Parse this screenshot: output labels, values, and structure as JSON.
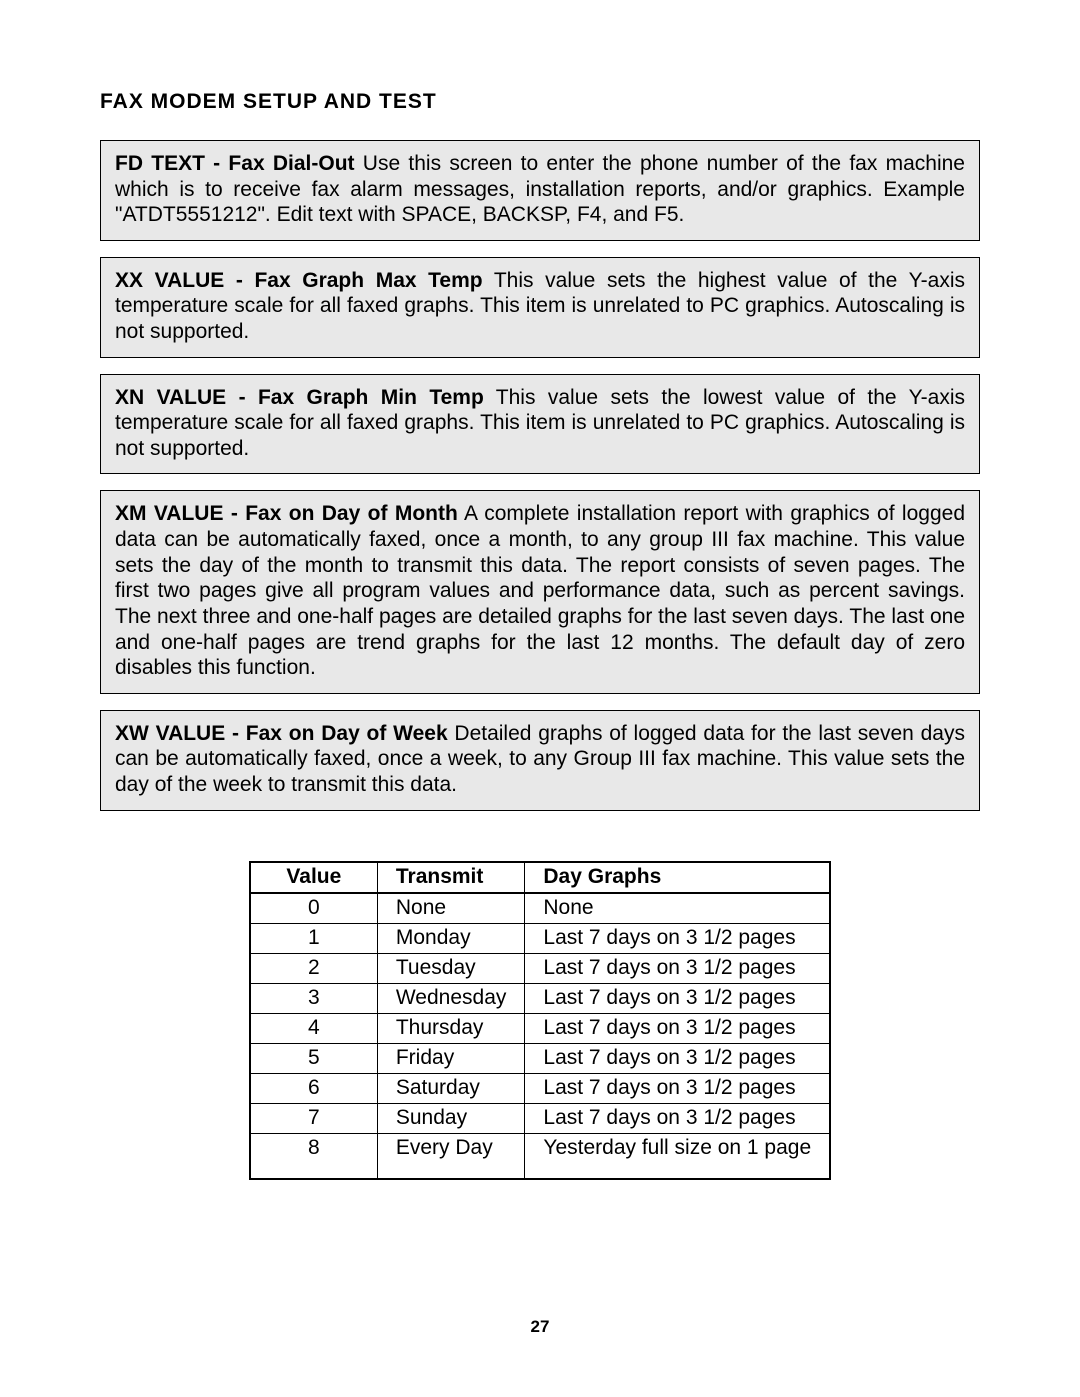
{
  "page": {
    "section_title": "FAX MODEM SETUP AND TEST",
    "page_number": "27"
  },
  "boxes": [
    {
      "lead": "FD TEXT - Fax Dial-Out",
      "body": " Use this screen to enter the phone number of the fax machine which is to receive fax alarm messages, installation reports, and/or graphics. Example \"ATDT5551212\". Edit text with SPACE, BACKSP, F4, and F5."
    },
    {
      "lead": "XX VALUE - Fax Graph Max Temp",
      "body": " This value sets the highest value of the Y-axis temperature scale for all faxed graphs. This item is unrelated to PC graphics.  Autoscaling is not supported."
    },
    {
      "lead": "XN VALUE - Fax Graph Min Temp",
      "body": " This value sets the lowest value of the Y-axis temperature scale for all faxed graphs. This item is unrelated to PC graphics.  Autoscaling is not supported."
    },
    {
      "lead": "XM VALUE - Fax on Day of Month",
      "body": " A complete installation report with graphics of logged data can be automatically faxed, once a month, to any group III fax machine.  This value sets the day of the month to transmit this data. The report consists of seven pages. The first two pages give all program values and performance data, such as percent savings. The next three and one-half pages are detailed graphs for the last seven days. The last one and one-half pages are trend graphs for the last 12 months.  The default day of zero disables this function."
    },
    {
      "lead": "XW VALUE - Fax on Day of Week",
      "body": " Detailed graphs of logged data for the last seven days can be automatically faxed, once a week, to any Group III fax machine. This value sets the day of the week to transmit this data."
    }
  ],
  "table": {
    "headers": [
      "Value",
      "Transmit",
      "Day Graphs"
    ],
    "rows": [
      [
        "0",
        "None",
        "None"
      ],
      [
        "1",
        "Monday",
        "Last 7 days on 3 1/2 pages"
      ],
      [
        "2",
        "Tuesday",
        "Last 7 days on 3 1/2 pages"
      ],
      [
        "3",
        "Wednesday",
        "Last 7 days on 3 1/2 pages"
      ],
      [
        "4",
        "Thursday",
        "Last 7 days on 3 1/2 pages"
      ],
      [
        "5",
        "Friday",
        "Last 7 days on 3 1/2 pages"
      ],
      [
        "6",
        "Saturday",
        "Last 7 days on 3 1/2 pages"
      ],
      [
        "7",
        "Sunday",
        "Last 7 days on 3 1/2 pages"
      ],
      [
        "8",
        "Every Day",
        "Yesterday full size on 1 page"
      ]
    ]
  }
}
